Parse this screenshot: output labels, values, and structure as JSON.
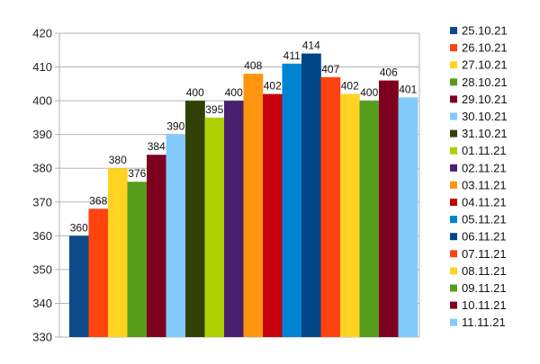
{
  "chart_data": {
    "type": "bar",
    "title": "",
    "xlabel": "",
    "ylabel": "",
    "ylim": [
      330,
      420
    ],
    "yticks": [
      330,
      340,
      350,
      360,
      370,
      380,
      390,
      400,
      410,
      420
    ],
    "grid": true,
    "legend": "right",
    "series": [
      {
        "name": "25.10.21",
        "value": 360,
        "color": "#0d4a8a"
      },
      {
        "name": "26.10.21",
        "value": 368,
        "color": "#ff420e"
      },
      {
        "name": "27.10.21",
        "value": 380,
        "color": "#ffd320"
      },
      {
        "name": "28.10.21",
        "value": 376,
        "color": "#579d1c"
      },
      {
        "name": "29.10.21",
        "value": 384,
        "color": "#7e0021"
      },
      {
        "name": "30.10.21",
        "value": 390,
        "color": "#83caff"
      },
      {
        "name": "31.10.21",
        "value": 400,
        "color": "#314004"
      },
      {
        "name": "01.11.21",
        "value": 395,
        "color": "#aecf00"
      },
      {
        "name": "02.11.21",
        "value": 400,
        "color": "#4b1f6f"
      },
      {
        "name": "03.11.21",
        "value": 408,
        "color": "#ff950e"
      },
      {
        "name": "04.11.21",
        "value": 402,
        "color": "#c5000b"
      },
      {
        "name": "05.11.21",
        "value": 411,
        "color": "#0084d1"
      },
      {
        "name": "06.11.21",
        "value": 414,
        "color": "#004586"
      },
      {
        "name": "07.11.21",
        "value": 407,
        "color": "#ff420e"
      },
      {
        "name": "08.11.21",
        "value": 402,
        "color": "#ffd320"
      },
      {
        "name": "09.11.21",
        "value": 400,
        "color": "#579d1c"
      },
      {
        "name": "10.11.21",
        "value": 406,
        "color": "#7e0021"
      },
      {
        "name": "11.11.21",
        "value": 401,
        "color": "#83caff"
      }
    ]
  }
}
